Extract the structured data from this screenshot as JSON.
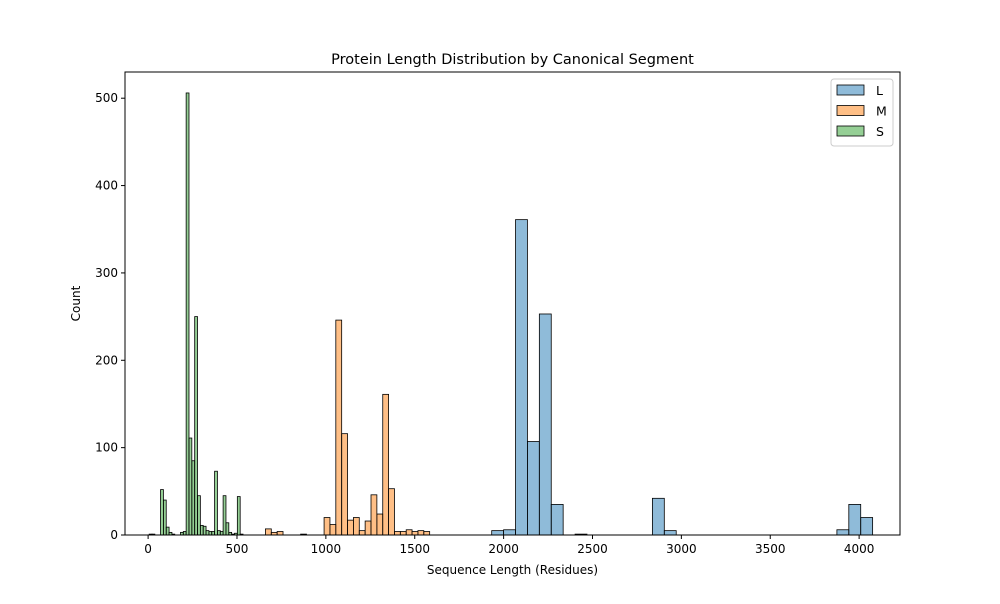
{
  "chart_data": {
    "type": "bar",
    "title": "Protein Length Distribution by Canonical Segment",
    "xlabel": "Sequence Length (Residues)",
    "ylabel": "Count",
    "xlim": [
      -130,
      4230
    ],
    "ylim": [
      0,
      530
    ],
    "xticks": [
      0,
      500,
      1000,
      1500,
      2000,
      2500,
      3000,
      3500,
      4000
    ],
    "yticks": [
      0,
      100,
      200,
      300,
      400,
      500
    ],
    "grid": false,
    "legend_position": "top-right",
    "series": [
      {
        "name": "L",
        "color": "#1f77b4",
        "bin_width": 67,
        "bins": [
          [
            1933,
            5
          ],
          [
            2000,
            6
          ],
          [
            2067,
            361
          ],
          [
            2134,
            107
          ],
          [
            2201,
            253
          ],
          [
            2268,
            35
          ],
          [
            2402,
            1
          ],
          [
            2837,
            42
          ],
          [
            2904,
            5
          ],
          [
            3875,
            6
          ],
          [
            3942,
            35
          ],
          [
            4009,
            20
          ]
        ]
      },
      {
        "name": "M",
        "color": "#ff7f0e",
        "bin_width": 33,
        "bins": [
          [
            660,
            7
          ],
          [
            693,
            3
          ],
          [
            726,
            4
          ],
          [
            858,
            1
          ],
          [
            990,
            20
          ],
          [
            1023,
            12
          ],
          [
            1056,
            246
          ],
          [
            1089,
            116
          ],
          [
            1122,
            17
          ],
          [
            1155,
            20
          ],
          [
            1188,
            5
          ],
          [
            1221,
            16
          ],
          [
            1254,
            46
          ],
          [
            1287,
            24
          ],
          [
            1320,
            161
          ],
          [
            1353,
            53
          ],
          [
            1386,
            4
          ],
          [
            1419,
            4
          ],
          [
            1452,
            6
          ],
          [
            1485,
            4
          ],
          [
            1518,
            5
          ],
          [
            1551,
            4
          ]
        ]
      },
      {
        "name": "S",
        "color": "#2ca02c",
        "bin_width": 16,
        "bins": [
          [
            6,
            1
          ],
          [
            22,
            1
          ],
          [
            70,
            52
          ],
          [
            86,
            40
          ],
          [
            102,
            9
          ],
          [
            118,
            3
          ],
          [
            134,
            1
          ],
          [
            182,
            3
          ],
          [
            198,
            4
          ],
          [
            214,
            506
          ],
          [
            230,
            111
          ],
          [
            246,
            85
          ],
          [
            262,
            250
          ],
          [
            278,
            45
          ],
          [
            294,
            11
          ],
          [
            310,
            10
          ],
          [
            326,
            5
          ],
          [
            342,
            4
          ],
          [
            358,
            4
          ],
          [
            374,
            73
          ],
          [
            390,
            5
          ],
          [
            406,
            4
          ],
          [
            422,
            45
          ],
          [
            438,
            14
          ],
          [
            454,
            3
          ],
          [
            470,
            1
          ],
          [
            486,
            2
          ],
          [
            502,
            44
          ],
          [
            518,
            1
          ]
        ]
      }
    ]
  }
}
